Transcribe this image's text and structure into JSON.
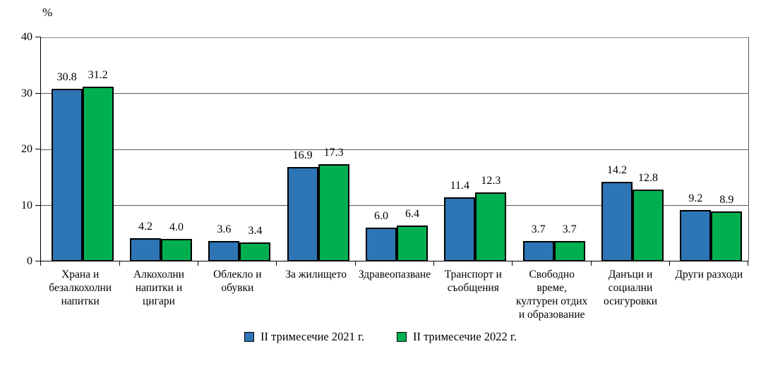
{
  "chart_data": {
    "type": "bar",
    "title": "",
    "ylabel": "%",
    "xlabel": "",
    "ylim": [
      0,
      40
    ],
    "yticks": [
      0,
      10,
      20,
      30,
      40
    ],
    "grid": true,
    "legend_position": "bottom",
    "categories": [
      "Храна и\nбезалкохолни\nнапитки",
      "Алкохолни\nнапитки  и\nцигари",
      "Облекло и\nобувки",
      "За жилището",
      "Здравеопазване",
      "Транспорт  и\nсъобщения",
      "Свободно\nвреме,\nкултурен отдих\nи образование",
      "Данъци и\nсоциални\nосигуровки",
      "Други разходи"
    ],
    "series": [
      {
        "name": "II тримесечие 2021  г.",
        "color": "#2E75B6",
        "values": [
          30.8,
          4.2,
          3.6,
          16.9,
          6.0,
          11.4,
          3.7,
          14.2,
          9.2
        ]
      },
      {
        "name": "II тримесечие 2022  г.",
        "color": "#00B050",
        "values": [
          31.2,
          4.0,
          3.4,
          17.3,
          6.4,
          12.3,
          3.7,
          12.8,
          8.9
        ]
      }
    ],
    "value_label_decimals": 1
  }
}
